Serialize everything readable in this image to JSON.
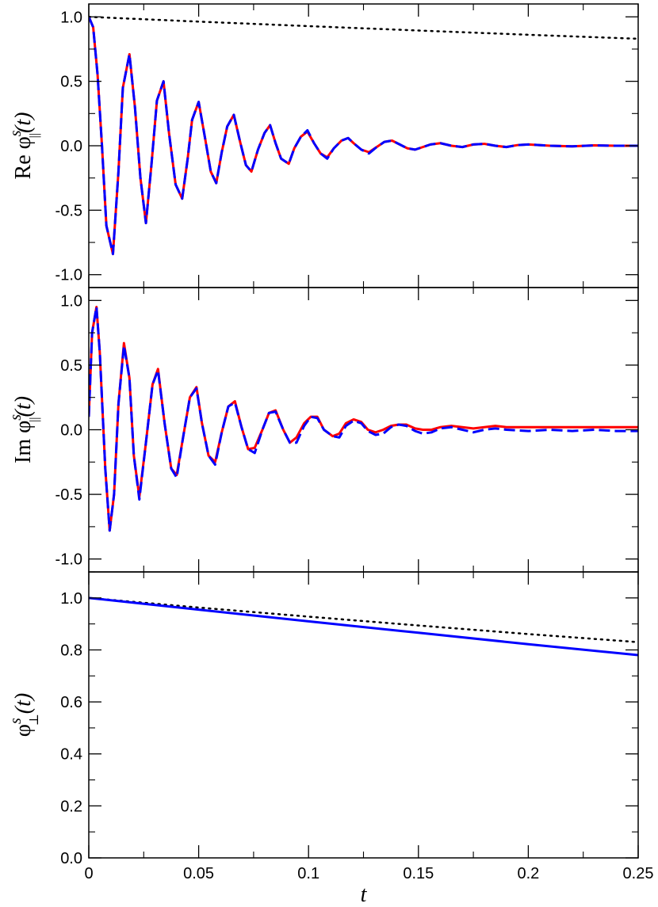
{
  "chart_data": [
    {
      "type": "line",
      "panel": "top",
      "ylabel": {
        "prefix": "Re ",
        "base": "φ",
        "sup": "s",
        "sub": "||",
        "arg": "(t)"
      },
      "xlim": [
        0,
        0.25
      ],
      "ylim": [
        -1.1,
        1.1
      ],
      "yticks": [
        -1.0,
        -0.5,
        0.0,
        0.5,
        1.0
      ],
      "ytick_labels": [
        "-1.0",
        "-0.5",
        "0.0",
        "0.5",
        "1.0"
      ],
      "series": [
        {
          "style": "dotted",
          "color": "#000000",
          "x": [
            0,
            0.05,
            0.1,
            0.15,
            0.2,
            0.25
          ],
          "y": [
            1.0,
            0.963,
            0.928,
            0.894,
            0.861,
            0.83
          ]
        },
        {
          "style": "solid",
          "color": "#ff0000",
          "x": [
            0,
            0.002,
            0.004,
            0.006,
            0.008,
            0.011,
            0.0135,
            0.0155,
            0.0185,
            0.021,
            0.0235,
            0.026,
            0.0285,
            0.031,
            0.034,
            0.0365,
            0.0395,
            0.0425,
            0.045,
            0.047,
            0.05,
            0.053,
            0.0555,
            0.058,
            0.0605,
            0.063,
            0.066,
            0.069,
            0.0715,
            0.074,
            0.077,
            0.08,
            0.0825,
            0.085,
            0.0875,
            0.091,
            0.0935,
            0.0965,
            0.0995,
            0.1025,
            0.1055,
            0.1085,
            0.1115,
            0.115,
            0.118,
            0.1205,
            0.124,
            0.1275,
            0.131,
            0.1345,
            0.138,
            0.1415,
            0.145,
            0.1485,
            0.152,
            0.1555,
            0.16,
            0.165,
            0.17,
            0.175,
            0.18,
            0.185,
            0.19,
            0.195,
            0.2,
            0.21,
            0.22,
            0.23,
            0.24,
            0.25
          ],
          "y": [
            1.0,
            0.92,
            0.55,
            0.0,
            -0.62,
            -0.84,
            -0.2,
            0.45,
            0.71,
            0.3,
            -0.25,
            -0.6,
            -0.15,
            0.35,
            0.5,
            0.1,
            -0.3,
            -0.41,
            -0.1,
            0.2,
            0.34,
            0.05,
            -0.2,
            -0.29,
            -0.05,
            0.15,
            0.24,
            0.02,
            -0.15,
            -0.2,
            -0.03,
            0.1,
            0.16,
            0.02,
            -0.1,
            -0.14,
            -0.02,
            0.07,
            0.11,
            0.02,
            -0.06,
            -0.09,
            -0.02,
            0.04,
            0.06,
            0.02,
            -0.03,
            -0.05,
            -0.01,
            0.03,
            0.04,
            0.01,
            -0.02,
            -0.03,
            -0.01,
            0.01,
            0.02,
            0.0,
            -0.01,
            0.01,
            0.015,
            0.0,
            -0.01,
            0.005,
            0.01,
            0.0,
            -0.005,
            0.003,
            0.0,
            0.0
          ]
        },
        {
          "style": "dashed",
          "color": "#0000ff",
          "x": [
            0,
            0.002,
            0.004,
            0.006,
            0.008,
            0.011,
            0.0135,
            0.0155,
            0.0185,
            0.021,
            0.0235,
            0.026,
            0.0285,
            0.031,
            0.034,
            0.0365,
            0.0395,
            0.0425,
            0.045,
            0.047,
            0.05,
            0.053,
            0.0555,
            0.058,
            0.0605,
            0.063,
            0.066,
            0.069,
            0.0715,
            0.074,
            0.077,
            0.08,
            0.0825,
            0.085,
            0.0875,
            0.091,
            0.0935,
            0.0965,
            0.0995,
            0.1025,
            0.1055,
            0.1085,
            0.1115,
            0.115,
            0.118,
            0.1205,
            0.124,
            0.1275,
            0.131,
            0.1345,
            0.138,
            0.1415,
            0.145,
            0.1485,
            0.152,
            0.1555,
            0.16,
            0.165,
            0.17,
            0.175,
            0.18,
            0.185,
            0.19,
            0.195,
            0.2,
            0.21,
            0.22,
            0.23,
            0.24,
            0.25
          ],
          "y": [
            1.0,
            0.92,
            0.55,
            0.0,
            -0.62,
            -0.84,
            -0.2,
            0.45,
            0.71,
            0.3,
            -0.25,
            -0.6,
            -0.15,
            0.35,
            0.5,
            0.1,
            -0.3,
            -0.41,
            -0.1,
            0.2,
            0.34,
            0.05,
            -0.2,
            -0.29,
            -0.05,
            0.15,
            0.24,
            0.02,
            -0.15,
            -0.2,
            -0.03,
            0.1,
            0.16,
            0.02,
            -0.1,
            -0.14,
            -0.02,
            0.07,
            0.12,
            0.02,
            -0.06,
            -0.1,
            -0.02,
            0.04,
            0.06,
            0.02,
            -0.03,
            -0.06,
            -0.01,
            0.03,
            0.04,
            0.01,
            -0.02,
            -0.03,
            -0.01,
            0.01,
            0.02,
            0.0,
            -0.01,
            0.01,
            0.015,
            0.0,
            -0.01,
            0.005,
            0.01,
            0.0,
            -0.005,
            0.003,
            0.0,
            0.0
          ]
        }
      ]
    },
    {
      "type": "line",
      "panel": "middle",
      "ylabel": {
        "prefix": "Im ",
        "base": "φ",
        "sup": "s",
        "sub": "||",
        "arg": "(t)"
      },
      "xlim": [
        0,
        0.25
      ],
      "ylim": [
        -1.1,
        1.1
      ],
      "yticks": [
        -1.0,
        -0.5,
        0.0,
        0.5,
        1.0
      ],
      "ytick_labels": [
        "-1.0",
        "-0.5",
        "0.0",
        "0.5",
        "1.0"
      ],
      "series": [
        {
          "style": "solid",
          "color": "#ff0000",
          "x": [
            0,
            0.0015,
            0.0035,
            0.005,
            0.0075,
            0.0095,
            0.0115,
            0.0135,
            0.016,
            0.0185,
            0.0205,
            0.023,
            0.026,
            0.029,
            0.0315,
            0.0345,
            0.0375,
            0.04,
            0.043,
            0.046,
            0.049,
            0.0515,
            0.0545,
            0.0575,
            0.0605,
            0.0635,
            0.0665,
            0.0695,
            0.0725,
            0.0755,
            0.079,
            0.082,
            0.085,
            0.0885,
            0.0915,
            0.0945,
            0.098,
            0.101,
            0.104,
            0.107,
            0.111,
            0.114,
            0.117,
            0.1205,
            0.124,
            0.127,
            0.1305,
            0.134,
            0.1375,
            0.141,
            0.1445,
            0.1485,
            0.152,
            0.156,
            0.16,
            0.165,
            0.17,
            0.175,
            0.18,
            0.185,
            0.19,
            0.2,
            0.21,
            0.22,
            0.23,
            0.24,
            0.25
          ],
          "y": [
            0.1,
            0.75,
            0.95,
            0.6,
            -0.3,
            -0.78,
            -0.5,
            0.2,
            0.67,
            0.4,
            -0.2,
            -0.52,
            -0.1,
            0.35,
            0.47,
            0.05,
            -0.3,
            -0.35,
            -0.05,
            0.25,
            0.33,
            0.05,
            -0.2,
            -0.25,
            -0.02,
            0.18,
            0.22,
            0.02,
            -0.15,
            -0.14,
            0.0,
            0.13,
            0.15,
            0.0,
            -0.1,
            -0.06,
            0.05,
            0.1,
            0.1,
            0.0,
            -0.05,
            -0.03,
            0.05,
            0.08,
            0.06,
            0.0,
            -0.02,
            0.0,
            0.03,
            0.04,
            0.04,
            0.01,
            0.0,
            0.0,
            0.02,
            0.03,
            0.02,
            0.01,
            0.02,
            0.03,
            0.02,
            0.02,
            0.02,
            0.02,
            0.02,
            0.02,
            0.02
          ]
        },
        {
          "style": "dashed",
          "color": "#0000ff",
          "x": [
            0,
            0.0015,
            0.0035,
            0.005,
            0.0075,
            0.0095,
            0.0115,
            0.0135,
            0.016,
            0.0185,
            0.0205,
            0.023,
            0.026,
            0.029,
            0.0315,
            0.0345,
            0.0375,
            0.04,
            0.043,
            0.046,
            0.049,
            0.0515,
            0.0545,
            0.0575,
            0.0605,
            0.0635,
            0.0665,
            0.0695,
            0.0725,
            0.0755,
            0.079,
            0.082,
            0.085,
            0.0885,
            0.0915,
            0.0945,
            0.098,
            0.101,
            0.104,
            0.107,
            0.111,
            0.114,
            0.117,
            0.1205,
            0.124,
            0.127,
            0.1305,
            0.134,
            0.1375,
            0.141,
            0.1445,
            0.1485,
            0.152,
            0.156,
            0.16,
            0.165,
            0.17,
            0.175,
            0.18,
            0.185,
            0.19,
            0.2,
            0.21,
            0.22,
            0.23,
            0.24,
            0.25
          ],
          "y": [
            0.1,
            0.75,
            0.95,
            0.6,
            -0.3,
            -0.78,
            -0.5,
            0.2,
            0.65,
            0.4,
            -0.2,
            -0.54,
            -0.1,
            0.35,
            0.46,
            0.05,
            -0.3,
            -0.37,
            -0.05,
            0.25,
            0.32,
            0.05,
            -0.2,
            -0.27,
            -0.02,
            0.18,
            0.21,
            0.02,
            -0.15,
            -0.18,
            0.0,
            0.13,
            0.14,
            0.0,
            -0.1,
            -0.1,
            0.03,
            0.1,
            0.09,
            0.0,
            -0.05,
            -0.06,
            0.03,
            0.07,
            0.05,
            -0.01,
            -0.04,
            -0.03,
            0.02,
            0.04,
            0.03,
            -0.01,
            -0.03,
            -0.02,
            0.01,
            0.02,
            0.0,
            -0.02,
            0.0,
            0.01,
            0.0,
            -0.01,
            0.0,
            -0.01,
            0.0,
            -0.01,
            -0.01
          ]
        }
      ]
    },
    {
      "type": "line",
      "panel": "bottom",
      "ylabel": {
        "prefix": "",
        "base": "φ",
        "sup": "s",
        "sub": "⊥",
        "arg": "(t)"
      },
      "xlabel": "t",
      "xlim": [
        0,
        0.25
      ],
      "ylim": [
        0.0,
        1.1
      ],
      "yticks": [
        0.0,
        0.2,
        0.4,
        0.6,
        0.8,
        1.0
      ],
      "ytick_labels": [
        "0.0",
        "0.2",
        "0.4",
        "0.6",
        "0.8",
        "1.0"
      ],
      "xticks": [
        0,
        0.05,
        0.1,
        0.15,
        0.2,
        0.25
      ],
      "xtick_labels": [
        "0",
        "0.05",
        "0.1",
        "0.15",
        "0.2",
        "0.25"
      ],
      "series": [
        {
          "style": "dotted",
          "color": "#000000",
          "x": [
            0,
            0.05,
            0.1,
            0.15,
            0.2,
            0.25
          ],
          "y": [
            1.0,
            0.963,
            0.928,
            0.894,
            0.861,
            0.83
          ]
        },
        {
          "style": "solid",
          "color": "#0000ff",
          "x": [
            0,
            0.05,
            0.1,
            0.15,
            0.2,
            0.25
          ],
          "y": [
            1.0,
            0.955,
            0.91,
            0.866,
            0.822,
            0.78
          ]
        }
      ]
    }
  ]
}
